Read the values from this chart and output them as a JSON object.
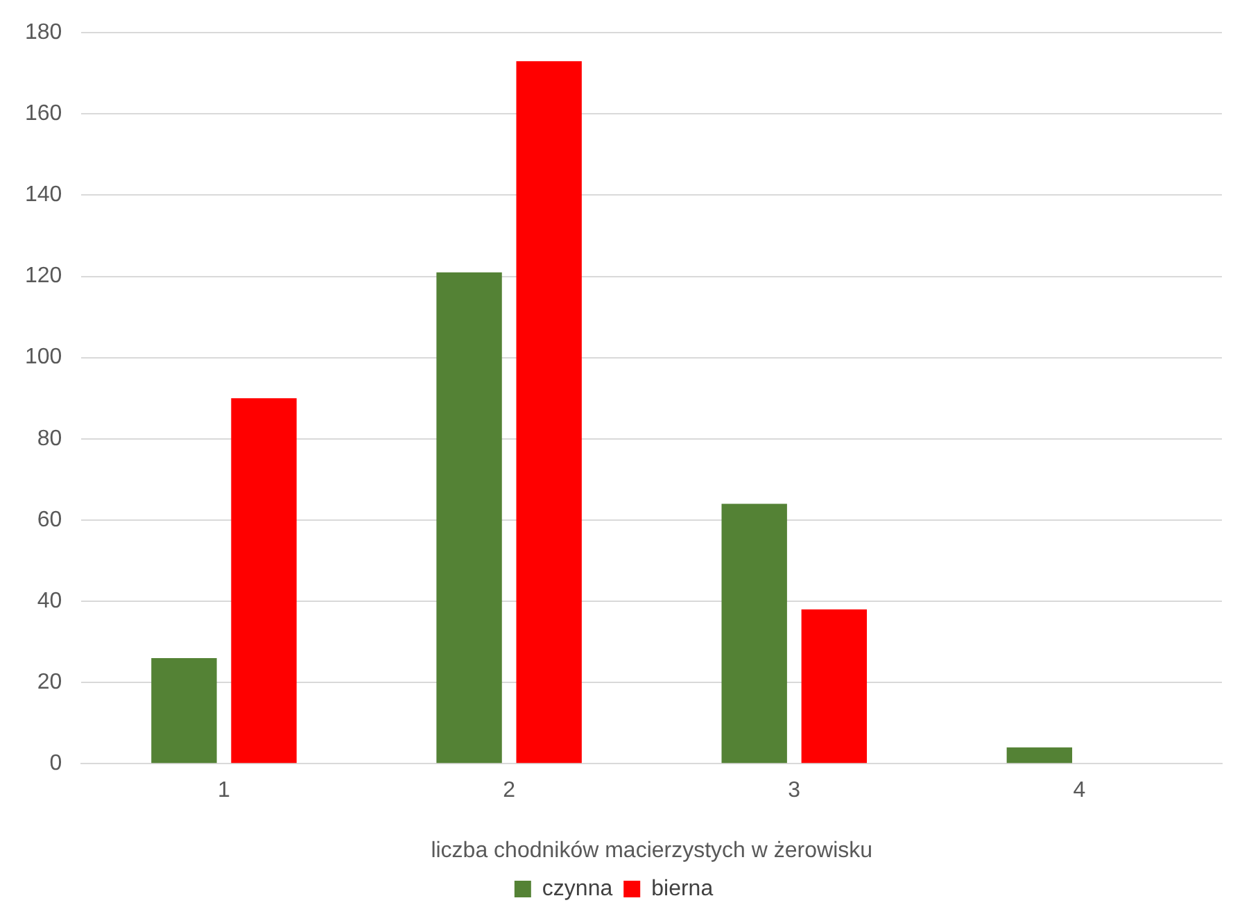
{
  "chart_data": {
    "type": "bar",
    "xlabel": "liczba chodników macierzystych w żerowisku",
    "categories": [
      "1",
      "2",
      "3",
      "4"
    ],
    "series": [
      {
        "name": "czynna",
        "color": "#548235",
        "values": [
          26,
          121,
          64,
          4
        ]
      },
      {
        "name": "bierna",
        "color": "#ff0000",
        "values": [
          90,
          173,
          38,
          0
        ]
      }
    ],
    "ylim": [
      0,
      180
    ],
    "yticks": [
      0,
      20,
      40,
      60,
      80,
      100,
      120,
      140,
      160,
      180
    ],
    "grid": "y",
    "legend": "bottom"
  }
}
